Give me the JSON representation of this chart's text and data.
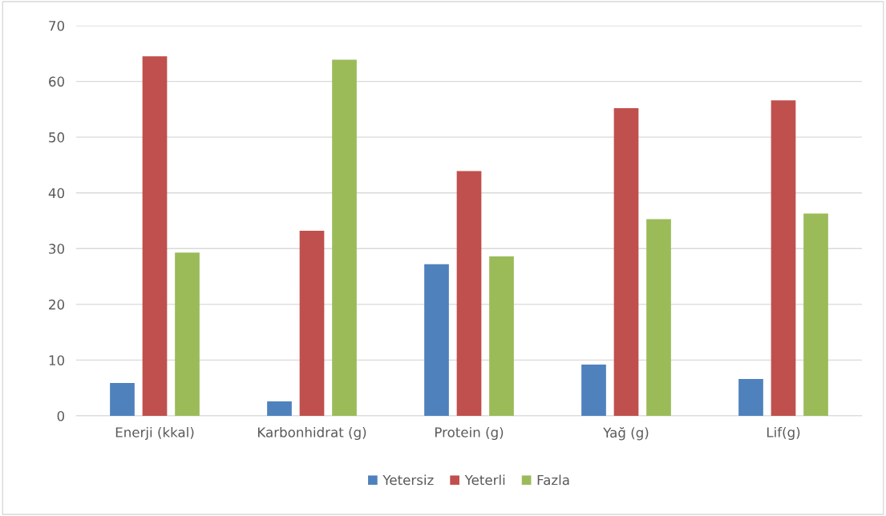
{
  "chart_data": {
    "type": "bar",
    "categories": [
      "Enerji (kkal)",
      "Karbonhidrat (g)",
      "Protein (g)",
      "Yağ (g)",
      "Lif(g)"
    ],
    "series": [
      {
        "name": "Yetersiz",
        "color": "#4f81bd",
        "values": [
          5.9,
          2.6,
          27.2,
          9.2,
          6.6
        ]
      },
      {
        "name": "Yeterli",
        "color": "#c0504d",
        "values": [
          64.5,
          33.2,
          43.9,
          55.2,
          56.6
        ]
      },
      {
        "name": "Fazla",
        "color": "#9bbb59",
        "values": [
          29.3,
          63.9,
          28.6,
          35.3,
          36.3
        ]
      }
    ],
    "ylim": [
      0,
      70
    ],
    "yticks": [
      0,
      10,
      20,
      30,
      40,
      50,
      60,
      70
    ],
    "grid": "y",
    "legend": "bottom"
  }
}
